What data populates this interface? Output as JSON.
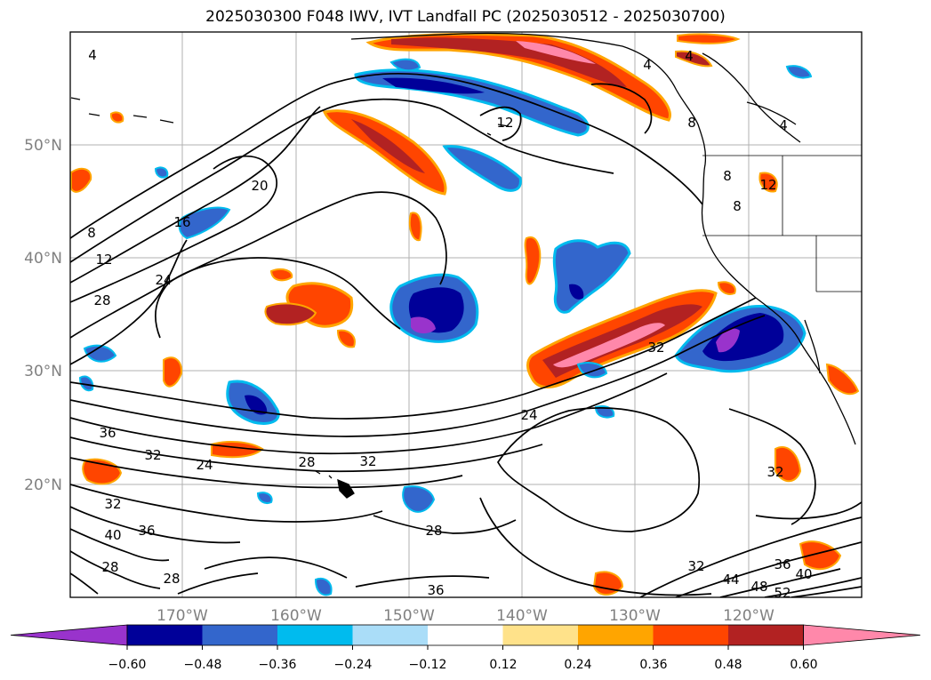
{
  "title": "2025030300 F048 IWV, IVT Landfall PC (2025030512 - 2025030700)",
  "axes": {
    "lon_labels": [
      "170°W",
      "160°W",
      "150°W",
      "140°W",
      "130°W",
      "120°W"
    ],
    "lat_labels": [
      "50°N",
      "40°N",
      "30°N",
      "20°N"
    ],
    "label_color": "#808080"
  },
  "colorbar": {
    "ticks": [
      "−0.60",
      "−0.48",
      "−0.36",
      "−0.24",
      "−0.12",
      "0.12",
      "0.24",
      "0.36",
      "0.48",
      "0.60"
    ],
    "colors": [
      "#9933cc",
      "#000099",
      "#3366cc",
      "#00bbee",
      "#aaddf8",
      "#ffffff",
      "#ffe28a",
      "#ffa500",
      "#ff4500",
      "#b22222",
      "#ff88aa"
    ],
    "extend": "both"
  },
  "contour_labels": [
    "4",
    "4",
    "4",
    "4",
    "8",
    "8",
    "8",
    "8",
    "12",
    "12",
    "12",
    "16",
    "20",
    "24",
    "24",
    "24",
    "28",
    "28",
    "28",
    "28",
    "28",
    "32",
    "32",
    "32",
    "32",
    "32",
    "32",
    "36",
    "36",
    "36",
    "36",
    "40",
    "40",
    "44",
    "48",
    "52"
  ]
}
